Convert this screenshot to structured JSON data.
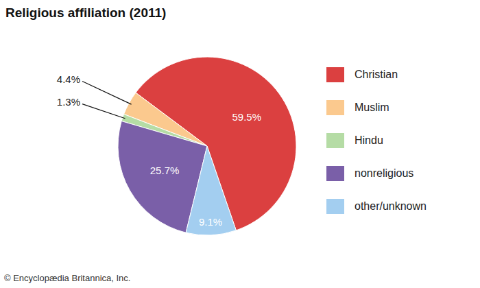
{
  "chart_data": {
    "type": "pie",
    "title": "Religious affiliation (2011)",
    "categories": [
      "Christian",
      "Muslim",
      "Hindu",
      "nonreligious",
      "other/unknown"
    ],
    "values": [
      59.5,
      4.4,
      1.3,
      25.7,
      9.1
    ],
    "value_labels": [
      "59.5%",
      "4.4%",
      "1.3%",
      "25.7%",
      "9.1%"
    ],
    "colors": [
      "#db4040",
      "#fbc98e",
      "#b5dca5",
      "#7a5fa8",
      "#a3cef0"
    ],
    "data_labels": true,
    "legend": "right",
    "annotations": [
      "© Encyclopædia Britannica, Inc."
    ]
  }
}
